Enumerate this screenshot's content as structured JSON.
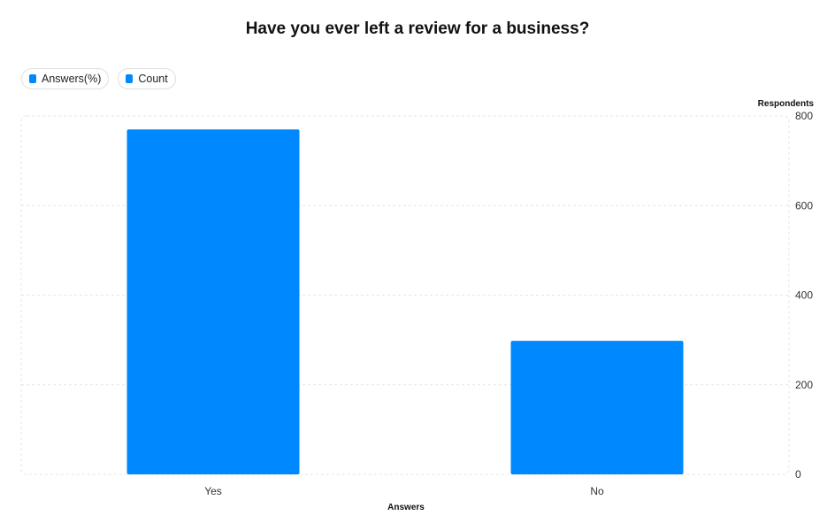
{
  "chart_data": {
    "type": "bar",
    "title": "Have you ever left a review for a business?",
    "xlabel": "Answers",
    "ylabel": "Respondents",
    "categories": [
      "Yes",
      "No"
    ],
    "series": [
      {
        "name": "Count",
        "values": [
          770,
          298
        ]
      }
    ],
    "ylim": [
      0,
      800
    ],
    "yticks": [
      0,
      200,
      400,
      600,
      800
    ],
    "y_axis_position": "right",
    "grid": true,
    "legend_position": "top-left",
    "bar_color": "#0088ff"
  },
  "legend": {
    "items": [
      {
        "label": "Answers(%)",
        "color": "#0088ff"
      },
      {
        "label": "Count",
        "color": "#0088ff"
      }
    ]
  }
}
